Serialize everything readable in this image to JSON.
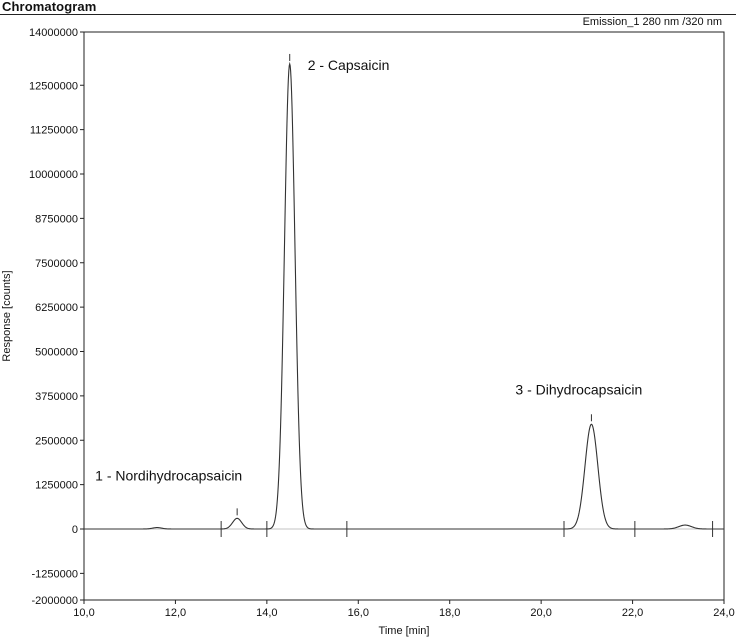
{
  "header": {
    "title": "Chromatogram",
    "detector": "Emission_1 280 nm /320 nm"
  },
  "chart_data": {
    "type": "line",
    "title": "",
    "xlabel": "Time [min]",
    "ylabel": "Response [counts]",
    "xlim": [
      10.0,
      24.0
    ],
    "ylim": [
      -2000000,
      14000000
    ],
    "x_ticks": [
      "10,0",
      "12,0",
      "14,0",
      "16,0",
      "18,0",
      "20,0",
      "22,0",
      "24,0"
    ],
    "x_tick_values": [
      10,
      12,
      14,
      16,
      18,
      20,
      22,
      24
    ],
    "y_ticks": [
      "14000000",
      "12500000",
      "11250000",
      "10000000",
      "8750000",
      "7500000",
      "6250000",
      "5000000",
      "3750000",
      "2500000",
      "1250000",
      "0",
      "-1250000",
      "-2000000"
    ],
    "y_tick_values": [
      14000000,
      12500000,
      11250000,
      10000000,
      8750000,
      7500000,
      6250000,
      5000000,
      3750000,
      2500000,
      1250000,
      0,
      -1250000,
      -2000000
    ],
    "grid": false,
    "line_color": "#333333",
    "baseline": 0,
    "peaks": [
      {
        "label": "1 - Nordihydrocapsaicin",
        "retention_time": 13.35,
        "height": 300000,
        "width": 0.1
      },
      {
        "label": "2 - Capsaicin",
        "retention_time": 14.5,
        "height": 13100000,
        "width": 0.115
      },
      {
        "label": "3 - Dihydrocapsaicin",
        "retention_time": 21.1,
        "height": 2950000,
        "width": 0.14
      }
    ],
    "minor_peaks": [
      {
        "retention_time": 11.6,
        "height": 40000,
        "width": 0.1
      },
      {
        "retention_time": 23.15,
        "height": 110000,
        "width": 0.14
      }
    ],
    "integration_marks": [
      13.0,
      14.0,
      15.75,
      20.5,
      22.05,
      23.75
    ]
  }
}
